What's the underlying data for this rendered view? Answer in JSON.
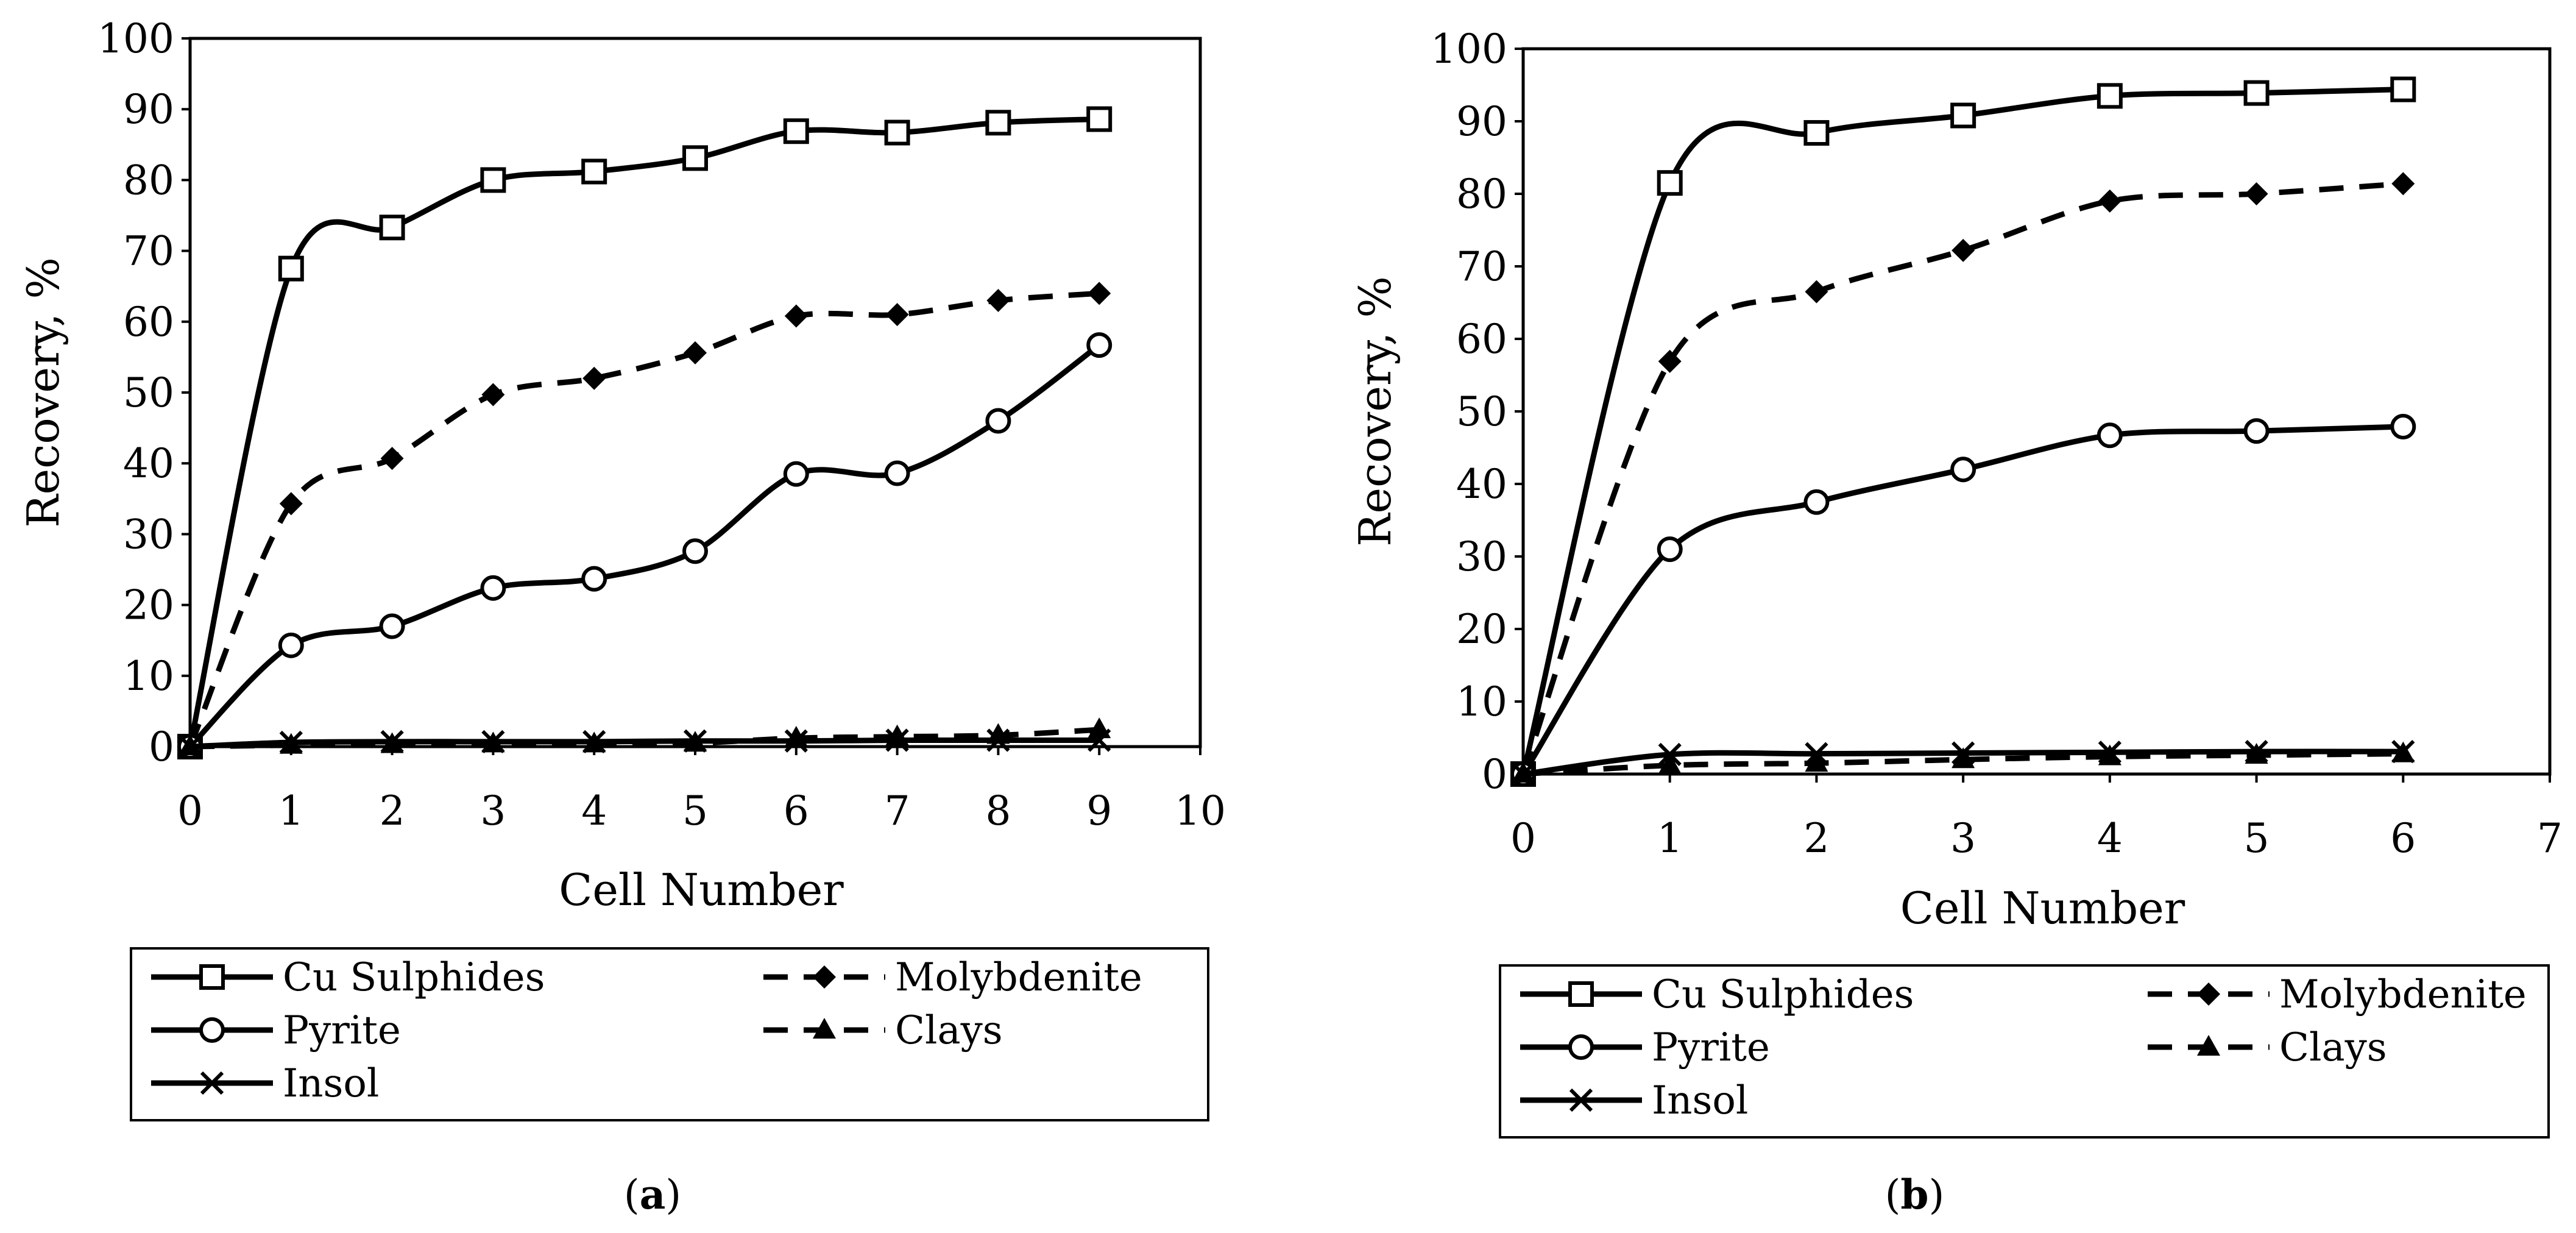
{
  "chart_data": [
    {
      "type": "line",
      "panel_label": "(a)",
      "xlabel": "Cell Number",
      "ylabel": "Recovery, %",
      "xlim": [
        0,
        10
      ],
      "ylim": [
        0,
        100
      ],
      "xticks": [
        "0",
        "1",
        "2",
        "3",
        "4",
        "5",
        "6",
        "7",
        "8",
        "9",
        "10"
      ],
      "yticks": [
        "0",
        "10",
        "20",
        "30",
        "40",
        "50",
        "60",
        "70",
        "80",
        "90",
        "100"
      ],
      "grid": false,
      "legend_position": "bottom",
      "series": [
        {
          "name": "Cu Sulphides",
          "marker": "square-open",
          "dash": "solid",
          "x": [
            0,
            1,
            2,
            3,
            4,
            5,
            6,
            7,
            8,
            9
          ],
          "y": [
            0,
            67.5,
            73.3,
            80.0,
            81.2,
            83.1,
            86.9,
            86.7,
            88.1,
            88.6
          ]
        },
        {
          "name": "Molybdenite",
          "marker": "diamond-filled",
          "dash": "dashed",
          "x": [
            0,
            1,
            2,
            3,
            4,
            5,
            6,
            7,
            8,
            9
          ],
          "y": [
            0,
            34.3,
            40.7,
            49.7,
            52.0,
            55.6,
            60.8,
            61.0,
            63.0,
            64.0
          ]
        },
        {
          "name": "Pyrite",
          "marker": "circle-open",
          "dash": "solid",
          "x": [
            0,
            1,
            2,
            3,
            4,
            5,
            6,
            7,
            8,
            9
          ],
          "y": [
            0,
            14.3,
            17.0,
            22.4,
            23.7,
            27.6,
            38.5,
            38.6,
            46.0,
            56.7
          ]
        },
        {
          "name": "Clays",
          "marker": "triangle-filled",
          "dash": "dashed",
          "x": [
            0,
            1,
            2,
            3,
            4,
            5,
            6,
            7,
            8,
            9
          ],
          "y": [
            0,
            0.2,
            0.3,
            0.4,
            0.4,
            0.5,
            1.2,
            1.4,
            1.6,
            2.4
          ]
        },
        {
          "name": "Insol",
          "marker": "x",
          "dash": "solid",
          "x": [
            0,
            1,
            2,
            3,
            4,
            5,
            6,
            7,
            8,
            9
          ],
          "y": [
            0,
            0.6,
            0.7,
            0.7,
            0.7,
            0.8,
            0.8,
            0.9,
            0.9,
            0.9
          ]
        }
      ]
    },
    {
      "type": "line",
      "panel_label": "(b)",
      "xlabel": "Cell Number",
      "ylabel": "Recovery, %",
      "xlim": [
        0,
        7
      ],
      "ylim": [
        0,
        100
      ],
      "xticks": [
        "0",
        "1",
        "2",
        "3",
        "4",
        "5",
        "6",
        "7"
      ],
      "yticks": [
        "0",
        "10",
        "20",
        "30",
        "40",
        "50",
        "60",
        "70",
        "80",
        "90",
        "100"
      ],
      "grid": false,
      "legend_position": "bottom",
      "series": [
        {
          "name": "Cu Sulphides",
          "marker": "square-open",
          "dash": "solid",
          "x": [
            0,
            1,
            2,
            3,
            4,
            5,
            6
          ],
          "y": [
            0,
            81.5,
            88.4,
            90.8,
            93.5,
            93.9,
            94.4
          ]
        },
        {
          "name": "Molybdenite",
          "marker": "diamond-filled",
          "dash": "dashed",
          "x": [
            0,
            1,
            2,
            3,
            4,
            5,
            6
          ],
          "y": [
            0,
            56.9,
            66.5,
            72.2,
            79.0,
            80.0,
            81.4
          ]
        },
        {
          "name": "Pyrite",
          "marker": "circle-open",
          "dash": "solid",
          "x": [
            0,
            1,
            2,
            3,
            4,
            5,
            6
          ],
          "y": [
            0,
            31.0,
            37.5,
            42.0,
            46.7,
            47.3,
            47.9
          ]
        },
        {
          "name": "Clays",
          "marker": "triangle-filled",
          "dash": "dashed",
          "x": [
            0,
            1,
            2,
            3,
            4,
            5,
            6
          ],
          "y": [
            0,
            1.2,
            1.5,
            2.0,
            2.4,
            2.6,
            2.8
          ]
        },
        {
          "name": "Insol",
          "marker": "x",
          "dash": "solid",
          "x": [
            0,
            1,
            2,
            3,
            4,
            5,
            6
          ],
          "y": [
            0,
            2.7,
            2.8,
            2.9,
            3.0,
            3.1,
            3.1
          ]
        }
      ]
    }
  ]
}
